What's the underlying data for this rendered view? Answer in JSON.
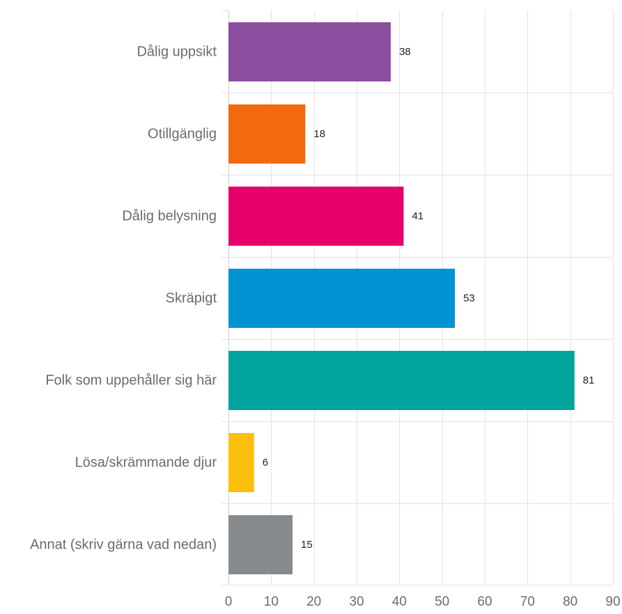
{
  "chart_data": {
    "type": "bar",
    "orientation": "horizontal",
    "title": "",
    "xlabel": "",
    "ylabel": "",
    "categories": [
      "Dålig uppsikt",
      "Otillgänglig",
      "Dålig belysning",
      "Skräpigt",
      "Folk som uppehåller sig här",
      "Lösa/skrämmande djur",
      "Annat (skriv gärna vad nedan)"
    ],
    "values": [
      38,
      18,
      41,
      53,
      81,
      6,
      15
    ],
    "value_labels": [
      "38",
      "18",
      "41",
      "53",
      "81",
      "6",
      "15"
    ],
    "colors": [
      "#8a4f9e",
      "#f26a10",
      "#e5006a",
      "#0093d3",
      "#00a49c",
      "#fbbf0e",
      "#888b8d"
    ],
    "xlim": [
      0,
      90
    ],
    "xticks": [
      0,
      10,
      20,
      30,
      40,
      50,
      60,
      70,
      80,
      90
    ],
    "xtick_labels": [
      "0",
      "10",
      "20",
      "30",
      "40",
      "50",
      "60",
      "70",
      "80",
      "90"
    ],
    "grid": true,
    "legend": "none"
  }
}
